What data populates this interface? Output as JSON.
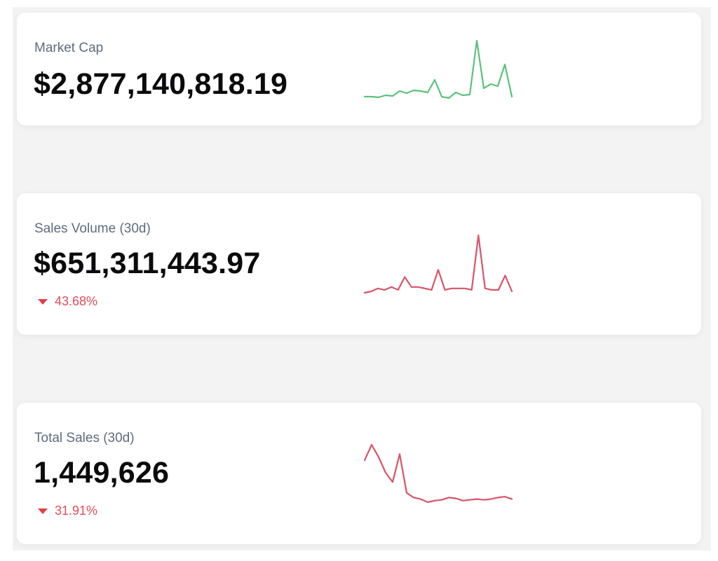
{
  "colors": {
    "up": "#5ac27a",
    "down": "#d95468",
    "label": "#5f6b7e",
    "change_down": "#e34c58"
  },
  "cards": [
    {
      "label": "Market Cap",
      "value": "$2,877,140,818.19",
      "trend": "up",
      "spark": [
        4,
        4,
        3.5,
        5,
        4.5,
        8,
        6.5,
        8.5,
        8,
        7,
        16,
        4,
        3,
        7,
        5,
        5.5,
        44,
        10,
        13,
        11.5,
        27,
        4
      ]
    },
    {
      "label": "Sales Volume (30d)",
      "value": "$651,311,443.97",
      "change": "43.68%",
      "trend": "down",
      "spark": [
        2,
        3,
        5,
        4,
        6,
        4,
        13,
        6,
        6,
        5,
        4,
        18,
        4,
        5,
        5,
        5,
        4,
        42,
        5,
        4,
        4,
        14,
        3
      ]
    },
    {
      "label": "Total Sales (30d)",
      "value": "1,449,626",
      "change": "31.91%",
      "trend": "down",
      "spark": [
        43,
        53,
        45,
        35,
        29,
        47,
        22,
        19,
        18,
        16,
        17,
        17.5,
        19,
        18.5,
        17,
        17.5,
        18,
        17.5,
        18,
        19,
        19.5,
        18
      ]
    }
  ]
}
